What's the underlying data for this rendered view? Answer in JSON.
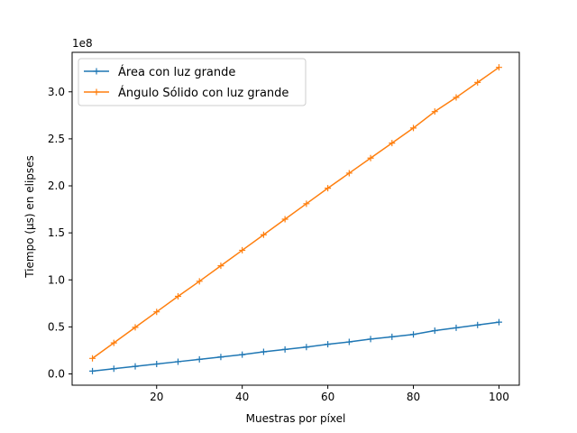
{
  "chart_data": {
    "type": "line",
    "xlabel": "Muestras por píxel",
    "ylabel": "Tiempo (μs) en elipses",
    "offset_text": "1e8",
    "xlim": [
      0.25,
      104.75
    ],
    "ylim": [
      -0.12,
      3.42
    ],
    "y_unit_multiplier": 100000000,
    "x_ticks": [
      20,
      40,
      60,
      80,
      100
    ],
    "x_tick_labels": [
      "20",
      "40",
      "60",
      "80",
      "100"
    ],
    "y_ticks": [
      0.0,
      0.5,
      1.0,
      1.5,
      2.0,
      2.5,
      3.0
    ],
    "y_tick_labels": [
      "0.0",
      "0.5",
      "1.0",
      "1.5",
      "2.0",
      "2.5",
      "3.0"
    ],
    "grid": false,
    "legend_position": "top-left",
    "x": [
      5,
      10,
      15,
      20,
      25,
      30,
      35,
      40,
      45,
      50,
      55,
      60,
      65,
      70,
      75,
      80,
      85,
      90,
      95,
      100
    ],
    "series": [
      {
        "name": "Área con luz grande",
        "color": "#1f77b4",
        "marker": "+",
        "values": [
          0.03,
          0.055,
          0.08,
          0.105,
          0.13,
          0.155,
          0.18,
          0.205,
          0.235,
          0.26,
          0.285,
          0.315,
          0.34,
          0.37,
          0.395,
          0.42,
          0.46,
          0.49,
          0.52,
          0.55
        ]
      },
      {
        "name": "Ángulo Sólido con luz grande",
        "color": "#ff7f0e",
        "marker": "+",
        "values": [
          0.165,
          0.33,
          0.495,
          0.66,
          0.825,
          0.985,
          1.15,
          1.315,
          1.48,
          1.645,
          1.81,
          1.975,
          2.135,
          2.295,
          2.455,
          2.615,
          2.79,
          2.94,
          3.1,
          3.26
        ]
      }
    ]
  }
}
